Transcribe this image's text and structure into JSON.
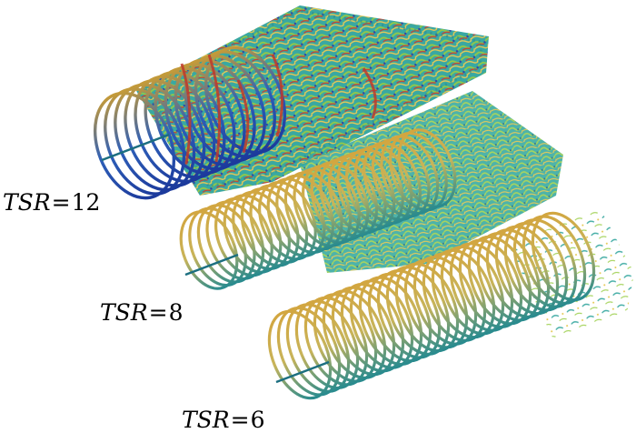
{
  "figure": {
    "cases": [
      {
        "symbol": "TSR",
        "equals": "=",
        "value": "12"
      },
      {
        "symbol": "TSR",
        "equals": "=",
        "value": "8"
      },
      {
        "symbol": "TSR",
        "equals": "=",
        "value": "6"
      }
    ],
    "colors": {
      "background": "#ffffff",
      "blade_core": "#2e8c8c",
      "blade_tip": "#c9a23a",
      "turbulence_teal": "#2aa6a0",
      "turbulence_green": "#8cc63f",
      "turbulence_yellow": "#e3c547",
      "high_vorticity_red": "#c0392b",
      "low_vorticity_blue": "#1f3fa8"
    }
  }
}
